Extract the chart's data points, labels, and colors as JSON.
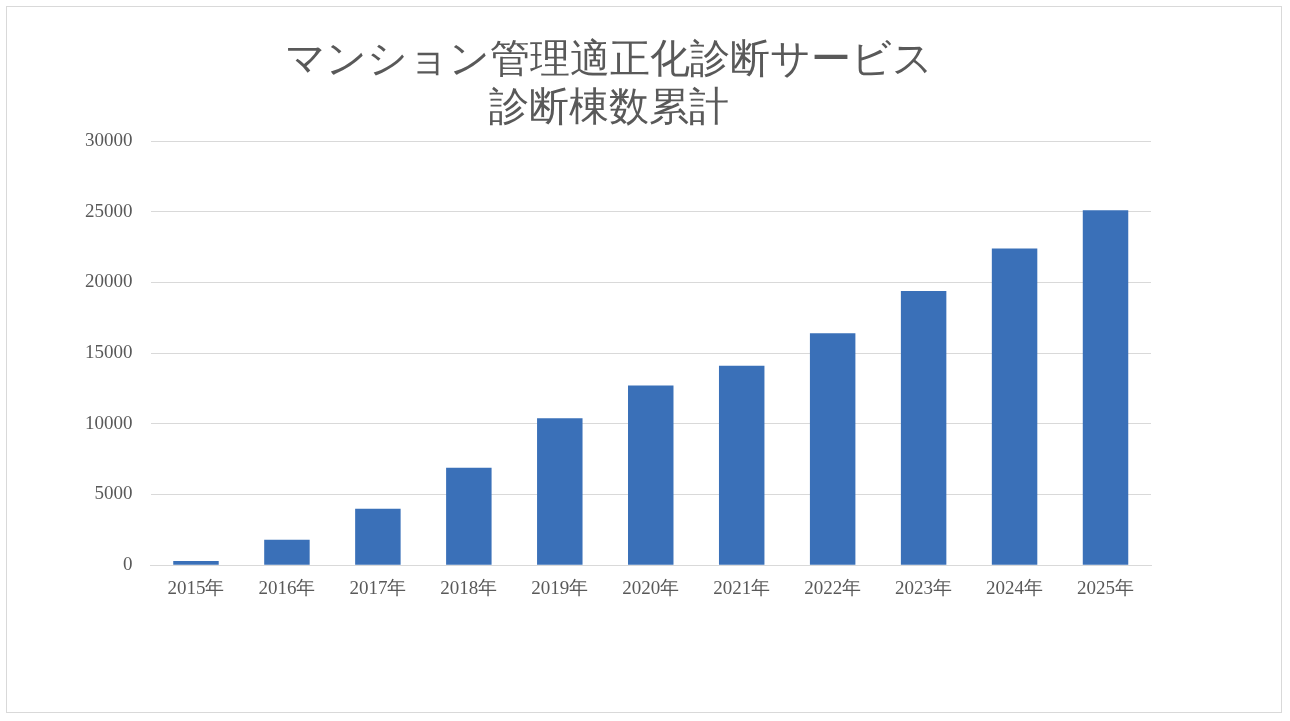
{
  "chart_data": {
    "type": "bar",
    "title": [
      "マンション管理適正化診断サービス",
      "診断棟数累計"
    ],
    "categories": [
      "2015年",
      "2016年",
      "2017年",
      "2018年",
      "2019年",
      "2020年",
      "2021年",
      "2022年",
      "2023年",
      "2024年",
      "2025年"
    ],
    "values": [
      300,
      1800,
      4000,
      6900,
      10400,
      12700,
      14100,
      16400,
      19400,
      22400,
      25100
    ],
    "color": "#3a70b8",
    "ylim": [
      0,
      30000
    ],
    "yticks": [
      0,
      5000,
      10000,
      15000,
      20000,
      25000,
      30000
    ],
    "grid": "y",
    "legend": false
  }
}
